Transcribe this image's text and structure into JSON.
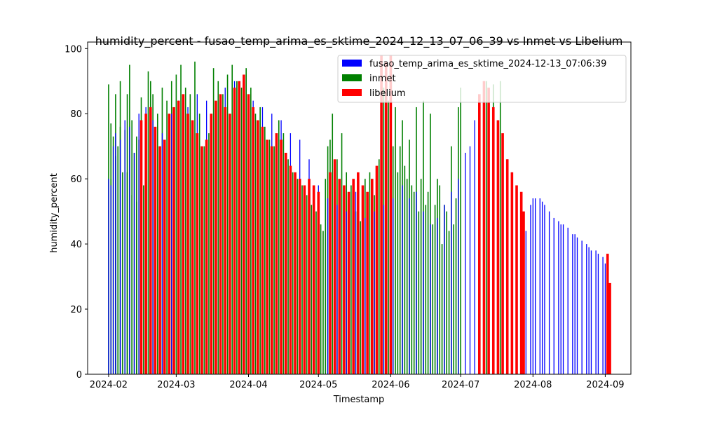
{
  "chart_data": {
    "type": "bar",
    "title": "humidity_percent - fusao_temp_arima_es_sktime_2024_12_13_07_06_39 vs Inmet vs Libelium",
    "xlabel": "Timestamp",
    "ylabel": "humidity_percent",
    "xlim": [
      "2024-01-23",
      "2024-09-12"
    ],
    "ylim": [
      0,
      102
    ],
    "grid": false,
    "legend_position": "top-right",
    "x_ticks": [
      "2024-02-01",
      "2024-03-01",
      "2024-04-01",
      "2024-05-01",
      "2024-06-01",
      "2024-07-01",
      "2024-08-01",
      "2024-09-01"
    ],
    "x_tick_labels": [
      "2024-02",
      "2024-03",
      "2024-04",
      "2024-05",
      "2024-06",
      "2024-07",
      "2024-08",
      "2024-09"
    ],
    "y_ticks": [
      0,
      20,
      40,
      60,
      80,
      100
    ],
    "y_tick_labels": [
      "0",
      "20",
      "40",
      "60",
      "80",
      "100"
    ],
    "series": [
      {
        "name": "fusao_temp_arima_es_sktime_2024-12-13_07:06:39",
        "color": "#0000ff",
        "x": [
          "2024-02-01",
          "2024-02-02",
          "2024-02-03",
          "2024-02-04",
          "2024-02-06",
          "2024-02-08",
          "2024-02-10",
          "2024-02-12",
          "2024-02-14",
          "2024-02-17",
          "2024-02-20",
          "2024-02-24",
          "2024-02-28",
          "2024-03-02",
          "2024-03-06",
          "2024-03-10",
          "2024-03-14",
          "2024-03-18",
          "2024-03-22",
          "2024-03-26",
          "2024-03-30",
          "2024-04-03",
          "2024-04-07",
          "2024-04-11",
          "2024-04-15",
          "2024-04-19",
          "2024-04-23",
          "2024-04-27",
          "2024-05-01",
          "2024-05-05",
          "2024-05-09",
          "2024-05-13",
          "2024-05-17",
          "2024-05-21",
          "2024-05-25",
          "2024-05-29",
          "2024-06-02",
          "2024-06-06",
          "2024-06-09",
          "2024-06-12",
          "2024-06-15",
          "2024-06-18",
          "2024-06-21",
          "2024-06-24",
          "2024-06-27",
          "2024-06-30",
          "2024-07-03",
          "2024-07-05",
          "2024-07-07",
          "2024-07-09",
          "2024-07-11",
          "2024-07-13",
          "2024-07-15",
          "2024-07-17",
          "2024-07-19",
          "2024-07-21",
          "2024-07-23",
          "2024-07-25",
          "2024-07-27",
          "2024-07-29",
          "2024-07-31",
          "2024-08-01",
          "2024-08-02",
          "2024-08-04",
          "2024-08-05",
          "2024-08-06",
          "2024-08-08",
          "2024-08-10",
          "2024-08-12",
          "2024-08-13",
          "2024-08-14",
          "2024-08-16",
          "2024-08-18",
          "2024-08-19",
          "2024-08-20",
          "2024-08-22",
          "2024-08-24",
          "2024-08-25",
          "2024-08-26",
          "2024-08-28",
          "2024-08-29",
          "2024-08-31",
          "2024-09-01",
          "2024-09-02"
        ],
        "values": [
          60,
          58,
          70,
          74,
          72,
          78,
          76,
          68,
          80,
          82,
          78,
          74,
          80,
          84,
          82,
          86,
          84,
          80,
          88,
          90,
          86,
          84,
          82,
          80,
          78,
          74,
          72,
          66,
          58,
          54,
          52,
          50,
          56,
          48,
          50,
          52,
          54,
          58,
          54,
          56,
          50,
          46,
          48,
          52,
          56,
          60,
          68,
          70,
          78,
          82,
          86,
          84,
          80,
          74,
          70,
          66,
          62,
          56,
          50,
          44,
          52,
          54,
          54,
          54,
          53,
          52,
          50,
          48,
          47,
          46,
          46,
          45,
          43,
          43,
          42,
          41,
          40,
          39,
          38,
          38,
          37,
          36,
          34,
          33
        ]
      },
      {
        "name": "inmet",
        "color": "#008000",
        "x": [
          "2024-02-01",
          "2024-02-02",
          "2024-02-02",
          "2024-02-03",
          "2024-02-04",
          "2024-02-04",
          "2024-02-05",
          "2024-02-06",
          "2024-02-06",
          "2024-02-07",
          "2024-02-08",
          "2024-02-09",
          "2024-02-09",
          "2024-02-10",
          "2024-02-11",
          "2024-02-11",
          "2024-02-12",
          "2024-02-13",
          "2024-02-13",
          "2024-02-14",
          "2024-02-15",
          "2024-02-15",
          "2024-02-16",
          "2024-02-17",
          "2024-02-18",
          "2024-02-19",
          "2024-02-20",
          "2024-02-22",
          "2024-02-24",
          "2024-02-26",
          "2024-02-28",
          "2024-03-01",
          "2024-03-03",
          "2024-03-05",
          "2024-03-07",
          "2024-03-09",
          "2024-03-11",
          "2024-03-13",
          "2024-03-15",
          "2024-03-17",
          "2024-03-19",
          "2024-03-21",
          "2024-03-23",
          "2024-03-25",
          "2024-03-27",
          "2024-03-29",
          "2024-03-31",
          "2024-04-02",
          "2024-04-04",
          "2024-04-06",
          "2024-04-08",
          "2024-04-10",
          "2024-04-12",
          "2024-04-14",
          "2024-04-16",
          "2024-04-18",
          "2024-04-20",
          "2024-04-22",
          "2024-04-24",
          "2024-04-26",
          "2024-04-28",
          "2024-04-30",
          "2024-05-02",
          "2024-05-03",
          "2024-05-04",
          "2024-05-05",
          "2024-05-06",
          "2024-05-07",
          "2024-05-09",
          "2024-05-11",
          "2024-05-13",
          "2024-05-15",
          "2024-05-17",
          "2024-05-19",
          "2024-05-21",
          "2024-05-23",
          "2024-05-25",
          "2024-05-27",
          "2024-05-29",
          "2024-05-31",
          "2024-06-01",
          "2024-06-02",
          "2024-06-03",
          "2024-06-04",
          "2024-06-05",
          "2024-06-06",
          "2024-06-07",
          "2024-06-08",
          "2024-06-09",
          "2024-06-10",
          "2024-06-11",
          "2024-06-12",
          "2024-06-13",
          "2024-06-14",
          "2024-06-15",
          "2024-06-16",
          "2024-06-17",
          "2024-06-18",
          "2024-06-19",
          "2024-06-20",
          "2024-06-21",
          "2024-06-22",
          "2024-06-23",
          "2024-06-24",
          "2024-06-25",
          "2024-06-26",
          "2024-06-27",
          "2024-06-28",
          "2024-06-29",
          "2024-06-30",
          "2024-07-01",
          "2024-07-12",
          "2024-07-15",
          "2024-07-18"
        ],
        "values": [
          89,
          77,
          60,
          73,
          67,
          86,
          70,
          76,
          90,
          62,
          75,
          86,
          62,
          95,
          55,
          78,
          68,
          73,
          53,
          72,
          62,
          85,
          58,
          62,
          93,
          90,
          86,
          80,
          88,
          84,
          90,
          92,
          95,
          88,
          86,
          96,
          80,
          70,
          74,
          94,
          90,
          86,
          92,
          95,
          90,
          88,
          94,
          88,
          80,
          82,
          76,
          72,
          70,
          78,
          74,
          66,
          62,
          60,
          58,
          55,
          52,
          50,
          46,
          44,
          60,
          70,
          72,
          80,
          66,
          74,
          62,
          58,
          50,
          47,
          60,
          62,
          55,
          66,
          88,
          84,
          86,
          70,
          82,
          62,
          70,
          78,
          64,
          60,
          72,
          58,
          56,
          82,
          50,
          60,
          84,
          52,
          56,
          80,
          46,
          52,
          60,
          58,
          40,
          52,
          50,
          44,
          70,
          46,
          54,
          82,
          88,
          90,
          89,
          90
        ]
      },
      {
        "name": "libelium",
        "color": "#ff0000",
        "x": [
          "2024-02-15",
          "2024-02-17",
          "2024-02-19",
          "2024-02-21",
          "2024-02-23",
          "2024-02-25",
          "2024-02-27",
          "2024-02-29",
          "2024-03-02",
          "2024-03-04",
          "2024-03-06",
          "2024-03-08",
          "2024-03-10",
          "2024-03-12",
          "2024-03-14",
          "2024-03-16",
          "2024-03-18",
          "2024-03-20",
          "2024-03-22",
          "2024-03-24",
          "2024-03-26",
          "2024-03-28",
          "2024-03-30",
          "2024-04-01",
          "2024-04-03",
          "2024-04-05",
          "2024-04-07",
          "2024-04-09",
          "2024-04-11",
          "2024-04-13",
          "2024-04-15",
          "2024-04-17",
          "2024-04-19",
          "2024-04-21",
          "2024-04-23",
          "2024-04-25",
          "2024-04-27",
          "2024-04-29",
          "2024-05-01",
          "2024-05-06",
          "2024-05-08",
          "2024-05-10",
          "2024-05-12",
          "2024-05-14",
          "2024-05-16",
          "2024-05-18",
          "2024-05-20",
          "2024-05-22",
          "2024-05-24",
          "2024-05-26",
          "2024-05-28",
          "2024-05-30",
          "2024-06-01",
          "2024-07-09",
          "2024-07-11",
          "2024-07-13",
          "2024-07-15",
          "2024-07-17",
          "2024-07-19",
          "2024-07-21",
          "2024-07-23",
          "2024-07-25",
          "2024-07-27",
          "2024-07-28",
          "2024-09-02",
          "2024-09-03"
        ],
        "values": [
          78,
          80,
          82,
          76,
          70,
          72,
          80,
          82,
          84,
          86,
          80,
          78,
          74,
          70,
          72,
          80,
          84,
          86,
          82,
          80,
          88,
          90,
          92,
          86,
          82,
          78,
          76,
          72,
          70,
          74,
          72,
          68,
          64,
          62,
          60,
          58,
          60,
          58,
          56,
          62,
          66,
          60,
          58,
          56,
          60,
          62,
          58,
          56,
          60,
          64,
          98,
          96,
          98,
          86,
          90,
          88,
          82,
          78,
          74,
          66,
          62,
          58,
          56,
          50,
          37,
          28
        ]
      }
    ]
  }
}
